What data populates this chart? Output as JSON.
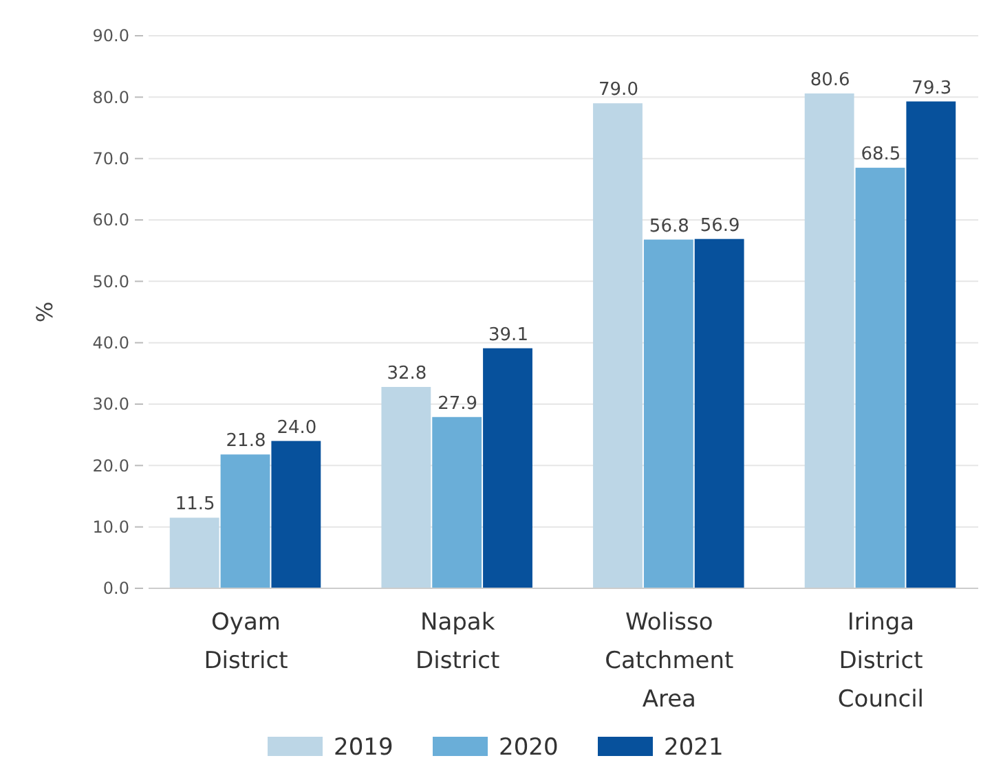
{
  "chart_data": {
    "type": "bar",
    "ylabel": "%",
    "categories": [
      "Oyam District",
      "Napak District",
      "Wolisso Catchment Area",
      "Iringa District Council"
    ],
    "series": [
      {
        "name": "2019",
        "color": "#bcd6e6",
        "values": [
          11.5,
          32.8,
          79.0,
          80.6
        ],
        "value_labels": [
          "11.5",
          "32.8",
          "79.0",
          "80.6"
        ]
      },
      {
        "name": "2020",
        "color": "#6aaed8",
        "values": [
          21.8,
          27.9,
          56.8,
          68.5
        ],
        "value_labels": [
          "21.8",
          "27.9",
          "56.8",
          "68.5"
        ]
      },
      {
        "name": "2021",
        "color": "#07519c",
        "values": [
          24.0,
          39.1,
          56.9,
          79.3
        ],
        "value_labels": [
          "24.0",
          "39.1",
          "56.9",
          "79.3"
        ]
      }
    ],
    "ylim": [
      0,
      90
    ],
    "yticks": [
      {
        "value": 0,
        "label": "0.0"
      },
      {
        "value": 10,
        "label": "10.0"
      },
      {
        "value": 20,
        "label": "20.0"
      },
      {
        "value": 30,
        "label": "30.0"
      },
      {
        "value": 40,
        "label": "40.0"
      },
      {
        "value": 50,
        "label": "50.0"
      },
      {
        "value": 60,
        "label": "60.0"
      },
      {
        "value": 70,
        "label": "70.0"
      },
      {
        "value": 80,
        "label": "80.0"
      },
      {
        "value": 90,
        "label": "90.0"
      }
    ],
    "grid": "y",
    "legend": "bottom"
  }
}
